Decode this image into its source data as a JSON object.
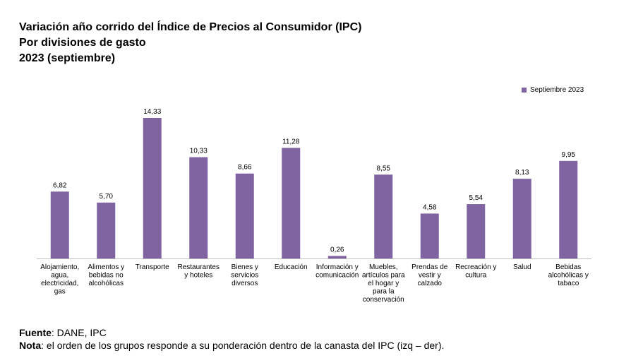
{
  "header": {
    "title_line1": "Variación año corrido del Índice de Precios al Consumidor (IPC)",
    "title_line2": "Por divisiones de gasto",
    "title_line3": "2023 (septiembre)"
  },
  "footer": {
    "source_label": "Fuente",
    "source_text": ": DANE, IPC",
    "note_label": "Nota",
    "note_text": ": el orden de los grupos responde a su ponderación dentro de la canasta del IPC (izq – der)."
  },
  "colors": {
    "bar": "#8064a2",
    "axis": "#bfbfbf"
  },
  "chart_data": {
    "type": "bar",
    "title": "Variación año corrido del Índice de Precios al Consumidor (IPC)",
    "subtitle": "Por divisiones de gasto — 2023 (septiembre)",
    "categories": [
      [
        "Alojamiento,",
        "agua,",
        "electricidad,",
        "gas"
      ],
      [
        "Alimentos y",
        "bebidas no",
        "alcohólicas"
      ],
      [
        "Transporte"
      ],
      [
        "Restaurantes",
        "y hoteles"
      ],
      [
        "Bienes y",
        "servicios",
        "diversos"
      ],
      [
        "Educación"
      ],
      [
        "Información y",
        "comunicación"
      ],
      [
        "Muebles,",
        "artículos para",
        "el hogar y",
        "para la",
        "conservación"
      ],
      [
        "Prendas de",
        "vestir y",
        "calzado"
      ],
      [
        "Recreación y",
        "cultura"
      ],
      [
        "Salud"
      ],
      [
        "Bebidas",
        "alcohólicas y",
        "tabaco"
      ]
    ],
    "series": [
      {
        "name": "Septiembre 2023",
        "values": [
          6.82,
          5.7,
          14.33,
          10.33,
          8.66,
          11.28,
          0.26,
          8.55,
          4.58,
          5.54,
          8.13,
          9.95
        ],
        "labels": [
          "6,82",
          "5,70",
          "14,33",
          "10,33",
          "8,66",
          "11,28",
          "0,26",
          "8,55",
          "4,58",
          "5,54",
          "8,13",
          "9,95"
        ]
      }
    ],
    "legend_position": "top-right",
    "grid": false
  }
}
